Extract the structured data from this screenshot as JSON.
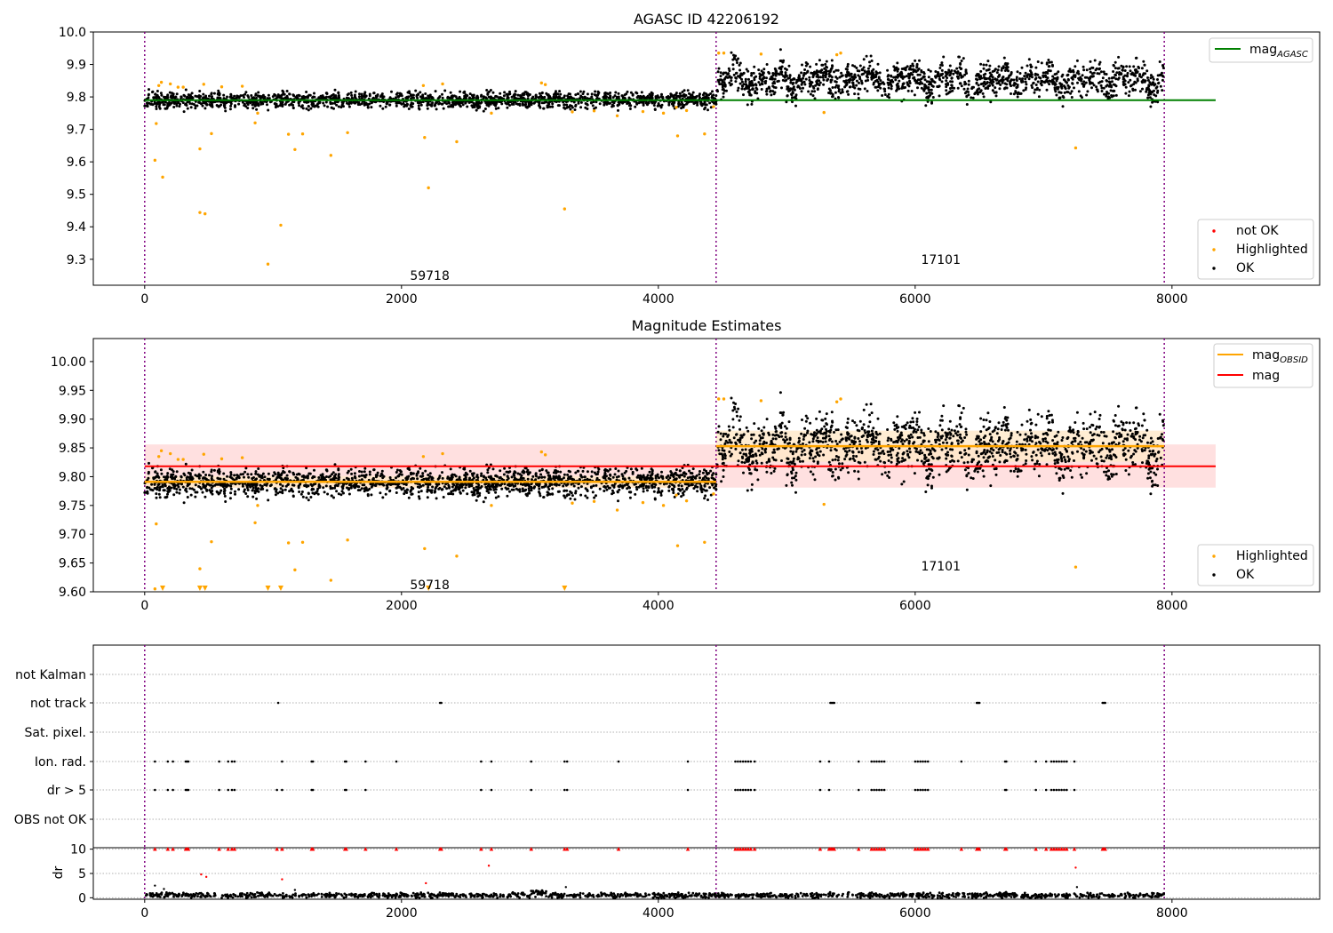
{
  "colors": {
    "ok": "#000000",
    "highlighted": "#ffa500",
    "not_ok": "#ff0000",
    "mag_agasc": "#008000",
    "mag_obsid": "#ffa500",
    "mag": "#ff0000",
    "mag_band": "#ffcccc",
    "obsid_band": "#ffe8c8",
    "obsid_line": "#800080",
    "grid": "#b0b0b0"
  },
  "chart_data": [
    {
      "type": "scatter",
      "title": "AGASC ID 42206192",
      "xlim": [
        -400,
        9150
      ],
      "ylim": [
        9.22,
        10.0
      ],
      "xticks": [
        "0",
        "2000",
        "4000",
        "6000",
        "8000"
      ],
      "yticks": [
        "9.3",
        "9.4",
        "9.5",
        "9.6",
        "9.7",
        "9.8",
        "9.9",
        "10.0"
      ],
      "obsid_boundaries": [
        0,
        4450,
        7940
      ],
      "obsid_labels": [
        {
          "text": "59718",
          "x": 2220,
          "y": 9.25
        },
        {
          "text": "17101",
          "x": 6200,
          "y": 9.3
        }
      ],
      "mag_agasc": 9.79,
      "obsid_segments": [
        {
          "x0": 0,
          "x1": 4450,
          "level": 9.79,
          "spread": 0.012,
          "count": 1800
        },
        {
          "x0": 4450,
          "x1": 7940,
          "level": 9.853,
          "spread": 0.025,
          "count": 1500
        }
      ],
      "highlighted_points": [
        [
          80,
          9.605
        ],
        [
          90,
          9.718
        ],
        [
          140,
          9.553
        ],
        [
          110,
          9.835
        ],
        [
          130,
          9.845
        ],
        [
          200,
          9.84
        ],
        [
          260,
          9.83
        ],
        [
          300,
          9.83
        ],
        [
          430,
          9.64
        ],
        [
          430,
          9.444
        ],
        [
          460,
          9.839
        ],
        [
          470,
          9.44
        ],
        [
          520,
          9.687
        ],
        [
          600,
          9.831
        ],
        [
          760,
          9.833
        ],
        [
          860,
          9.72
        ],
        [
          880,
          9.75
        ],
        [
          960,
          9.285
        ],
        [
          1060,
          9.405
        ],
        [
          1120,
          9.685
        ],
        [
          1170,
          9.638
        ],
        [
          1230,
          9.686
        ],
        [
          1450,
          9.62
        ],
        [
          1580,
          9.69
        ],
        [
          2170,
          9.835
        ],
        [
          2180,
          9.675
        ],
        [
          2210,
          9.52
        ],
        [
          2320,
          9.84
        ],
        [
          2430,
          9.662
        ],
        [
          2700,
          9.75
        ],
        [
          3090,
          9.843
        ],
        [
          3120,
          9.838
        ],
        [
          3270,
          9.455
        ],
        [
          3330,
          9.754
        ],
        [
          3500,
          9.757
        ],
        [
          3680,
          9.742
        ],
        [
          3880,
          9.755
        ],
        [
          4040,
          9.75
        ],
        [
          4140,
          9.768
        ],
        [
          4150,
          9.68
        ],
        [
          4220,
          9.758
        ],
        [
          4360,
          9.686
        ],
        [
          4430,
          9.77
        ],
        [
          4470,
          9.935
        ],
        [
          4510,
          9.935
        ],
        [
          4800,
          9.932
        ],
        [
          5290,
          9.752
        ],
        [
          5390,
          9.93
        ],
        [
          5420,
          9.935
        ],
        [
          7250,
          9.643
        ]
      ],
      "legend": {
        "line": "mag",
        "line_subscript": "AGASC",
        "points": [
          "not OK",
          "Highlighted",
          "OK"
        ]
      }
    },
    {
      "type": "scatter",
      "title": "Magnitude Estimates",
      "xlim": [
        -400,
        9150
      ],
      "ylim": [
        9.6,
        10.04
      ],
      "xticks": [
        "0",
        "2000",
        "4000",
        "6000",
        "8000"
      ],
      "yticks": [
        "9.60",
        "9.65",
        "9.70",
        "9.75",
        "9.80",
        "9.85",
        "9.90",
        "9.95",
        "10.00"
      ],
      "obsid_boundaries": [
        0,
        4450,
        7940
      ],
      "obsid_labels": [
        {
          "text": "59718",
          "x": 2220,
          "y": 9.612
        },
        {
          "text": "17101",
          "x": 6200,
          "y": 9.645
        }
      ],
      "mag": 9.818,
      "mag_band": [
        9.781,
        9.856
      ],
      "mag_obsid": [
        {
          "x0": 0,
          "x1": 4450,
          "value": 9.791,
          "band": [
            9.781,
            9.801
          ]
        },
        {
          "x0": 4450,
          "x1": 7940,
          "value": 9.853,
          "band": [
            9.826,
            9.88
          ]
        }
      ],
      "legend": {
        "lines": [
          "mag",
          "mag"
        ],
        "line_subscripts": [
          "OBSID",
          ""
        ],
        "points": [
          "Highlighted",
          "OK"
        ]
      }
    },
    {
      "type": "scatter",
      "title": "",
      "xlim": [
        -400,
        9150
      ],
      "xticks": [
        "0",
        "2000",
        "4000",
        "6000",
        "8000"
      ],
      "flag_rows": [
        "not Kalman",
        "not track",
        "Sat. pixel.",
        "Ion. rad.",
        "dr > 5",
        "OBS not OK"
      ],
      "flags": {
        "not track": [
          1040,
          2300,
          2310,
          5340,
          5350,
          5360,
          5370,
          6480,
          6490,
          6500,
          7460,
          7470,
          7480
        ],
        "Ion. rad.": [
          80,
          180,
          220,
          320,
          330,
          340,
          580,
          650,
          680,
          700,
          1070,
          1300,
          1310,
          1560,
          1570,
          1720,
          1960,
          2620,
          2700,
          3010,
          3270,
          3290,
          3690,
          4230,
          4600,
          4620,
          4640,
          4660,
          4680,
          4700,
          4720,
          4750,
          5260,
          5330,
          5560,
          5660,
          5680,
          5700,
          5720,
          5740,
          5760,
          6000,
          6020,
          6040,
          6060,
          6080,
          6100,
          6360,
          6700,
          6710,
          6940,
          7020,
          7060,
          7080,
          7100,
          7120,
          7140,
          7160,
          7180,
          7240
        ],
        "dr > 5": [
          80,
          180,
          220,
          320,
          330,
          340,
          580,
          650,
          680,
          700,
          1030,
          1070,
          1300,
          1310,
          1560,
          1570,
          1720,
          2620,
          2700,
          3010,
          3270,
          3290,
          4230,
          4600,
          4620,
          4640,
          4660,
          4680,
          4700,
          4720,
          4750,
          5260,
          5330,
          5560,
          5660,
          5680,
          5700,
          5720,
          5740,
          5760,
          6000,
          6020,
          6040,
          6060,
          6080,
          6100,
          6700,
          6710,
          6940,
          7020,
          7060,
          7080,
          7100,
          7120,
          7140,
          7160,
          7180,
          7240
        ]
      }
    },
    {
      "type": "scatter",
      "title": "",
      "xlim": [
        -400,
        9150
      ],
      "ylim": [
        -0.3,
        10.3
      ],
      "ylabel": "dr",
      "xticks": [
        "0",
        "2000",
        "4000",
        "6000",
        "8000"
      ],
      "yticks": [
        "0",
        "5",
        "10"
      ],
      "obsid_boundaries": [
        0,
        4450,
        7940
      ],
      "clipped_x": [
        80,
        180,
        220,
        320,
        330,
        340,
        580,
        650,
        680,
        700,
        1030,
        1070,
        1300,
        1310,
        1560,
        1570,
        1720,
        1960,
        2300,
        2310,
        2620,
        2700,
        3010,
        3270,
        3290,
        3690,
        4230,
        4600,
        4620,
        4640,
        4660,
        4680,
        4700,
        4720,
        4750,
        5260,
        5330,
        5340,
        5350,
        5360,
        5370,
        5560,
        5660,
        5680,
        5700,
        5720,
        5740,
        5760,
        6000,
        6020,
        6040,
        6060,
        6080,
        6100,
        6360,
        6480,
        6490,
        6500,
        6700,
        6710,
        6940,
        7020,
        7060,
        7080,
        7100,
        7120,
        7140,
        7160,
        7180,
        7240,
        7460,
        7470,
        7480
      ],
      "red_points": [
        [
          440,
          4.8
        ],
        [
          480,
          4.3
        ],
        [
          1070,
          3.8
        ],
        [
          2190,
          3.0
        ],
        [
          2680,
          6.6
        ],
        [
          7250,
          6.2
        ]
      ],
      "black_points": [
        [
          80,
          2.5
        ],
        [
          150,
          1.8
        ],
        [
          1170,
          1.6
        ],
        [
          3280,
          2.2
        ],
        [
          7260,
          2.2
        ]
      ],
      "baseline": {
        "x0": 0,
        "x1": 7940,
        "level": 0.5,
        "count": 1400
      }
    }
  ]
}
